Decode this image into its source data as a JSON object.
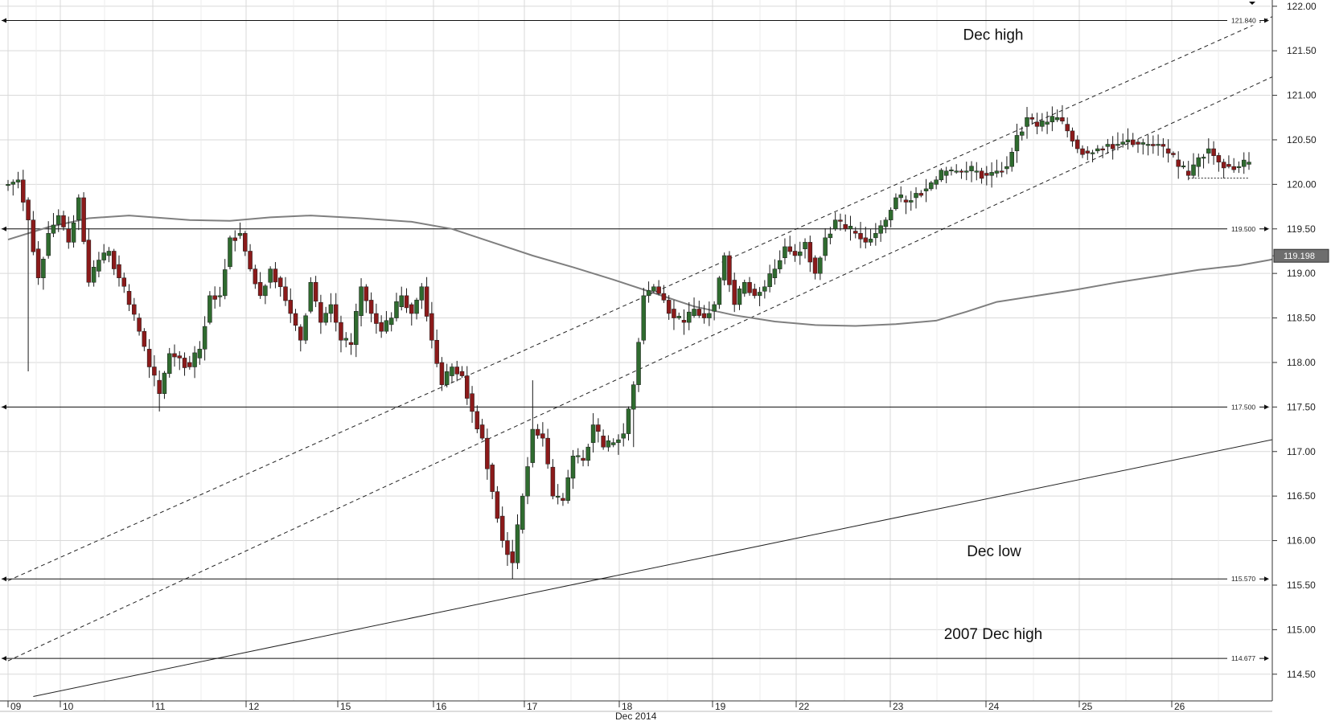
{
  "chart_data": {
    "type": "candlestick",
    "instrument_timeframe": "hourly",
    "y_axis_ticks": [
      "122.00",
      "121.50",
      "121.00",
      "120.50",
      "120.00",
      "119.50",
      "119.00",
      "118.50",
      "118.00",
      "117.50",
      "117.00",
      "116.50",
      "116.00",
      "115.50",
      "115.00",
      "114.50"
    ],
    "y_range": [
      114.2,
      122.07
    ],
    "x_axis_ticks": [
      "09",
      "10",
      "11",
      "12",
      "15",
      "16",
      "17",
      "18",
      "19",
      "22",
      "23",
      "24",
      "25",
      "26"
    ],
    "x_axis_title": "Dec 2014",
    "current_price": "119.198",
    "levels": [
      {
        "label": "121.840",
        "value": 121.84
      },
      {
        "label": "119.500",
        "value": 119.5
      },
      {
        "label": "117.500",
        "value": 117.5
      },
      {
        "label": "115.570",
        "value": 115.57
      },
      {
        "label": "114.677",
        "value": 114.677
      }
    ],
    "annotations": [
      {
        "text": "Dec high",
        "level": 121.84
      },
      {
        "text": "Dec low",
        "level": 115.57
      },
      {
        "text": "2007 Dec high",
        "level": 114.677
      }
    ],
    "channel_upper": [
      {
        "t": 0,
        "y": 115.55
      },
      {
        "t": 129.0,
        "y": 122.07
      }
    ],
    "channel_lower": [
      {
        "t": 0,
        "y": 114.65
      },
      {
        "t": 129.0,
        "y": 121.4
      }
    ],
    "long_trendline": [
      {
        "t": 2.5,
        "y": 114.25
      },
      {
        "t": 129.0,
        "y": 117.22
      }
    ],
    "moving_average": [
      {
        "t": 0,
        "y": 119.38
      },
      {
        "t": 4,
        "y": 119.52
      },
      {
        "t": 8,
        "y": 119.62
      },
      {
        "t": 12,
        "y": 119.65
      },
      {
        "t": 18,
        "y": 119.6
      },
      {
        "t": 22,
        "y": 119.59
      },
      {
        "t": 26,
        "y": 119.63
      },
      {
        "t": 30,
        "y": 119.65
      },
      {
        "t": 35,
        "y": 119.62
      },
      {
        "t": 40,
        "y": 119.58
      },
      {
        "t": 44,
        "y": 119.5
      },
      {
        "t": 48,
        "y": 119.35
      },
      {
        "t": 52,
        "y": 119.2
      },
      {
        "t": 56,
        "y": 119.07
      },
      {
        "t": 60,
        "y": 118.93
      },
      {
        "t": 64,
        "y": 118.78
      },
      {
        "t": 68,
        "y": 118.63
      },
      {
        "t": 72,
        "y": 118.53
      },
      {
        "t": 76,
        "y": 118.46
      },
      {
        "t": 80,
        "y": 118.42
      },
      {
        "t": 84,
        "y": 118.41
      },
      {
        "t": 88,
        "y": 118.43
      },
      {
        "t": 92,
        "y": 118.47
      },
      {
        "t": 95,
        "y": 118.57
      },
      {
        "t": 98,
        "y": 118.68
      },
      {
        "t": 102,
        "y": 118.75
      },
      {
        "t": 106,
        "y": 118.82
      },
      {
        "t": 110,
        "y": 118.9
      },
      {
        "t": 114,
        "y": 118.97
      },
      {
        "t": 118,
        "y": 119.04
      },
      {
        "t": 122,
        "y": 119.09
      },
      {
        "t": 125,
        "y": 119.15
      },
      {
        "t": 127,
        "y": 119.2
      }
    ],
    "gap_line": {
      "t0": 117.0,
      "t1": 123.0,
      "y": 120.07
    },
    "price_path": [
      {
        "t": 0,
        "y": 120.0
      },
      {
        "t": 1,
        "y": 120.05
      },
      {
        "t": 2,
        "y": 119.6
      },
      {
        "t": 3,
        "y": 118.95
      },
      {
        "t": 4,
        "y": 119.45
      },
      {
        "t": 5,
        "y": 119.65
      },
      {
        "t": 6,
        "y": 119.35
      },
      {
        "t": 7,
        "y": 119.85
      },
      {
        "t": 8,
        "y": 118.9
      },
      {
        "t": 9,
        "y": 119.15
      },
      {
        "t": 10,
        "y": 119.25
      },
      {
        "t": 11,
        "y": 118.95
      },
      {
        "t": 12,
        "y": 118.65
      },
      {
        "t": 13,
        "y": 118.35
      },
      {
        "t": 14,
        "y": 117.95
      },
      {
        "t": 15,
        "y": 117.65
      },
      {
        "t": 16,
        "y": 118.1
      },
      {
        "t": 17,
        "y": 118.05
      },
      {
        "t": 18,
        "y": 117.95
      },
      {
        "t": 19,
        "y": 118.15
      },
      {
        "t": 20,
        "y": 118.75
      },
      {
        "t": 21,
        "y": 118.75
      },
      {
        "t": 22,
        "y": 119.4
      },
      {
        "t": 23,
        "y": 119.45
      },
      {
        "t": 24,
        "y": 119.05
      },
      {
        "t": 25,
        "y": 118.75
      },
      {
        "t": 26,
        "y": 119.05
      },
      {
        "t": 27,
        "y": 118.85
      },
      {
        "t": 28,
        "y": 118.55
      },
      {
        "t": 29,
        "y": 118.25
      },
      {
        "t": 30,
        "y": 118.9
      },
      {
        "t": 31,
        "y": 118.45
      },
      {
        "t": 32,
        "y": 118.65
      },
      {
        "t": 33,
        "y": 118.25
      },
      {
        "t": 34,
        "y": 118.2
      },
      {
        "t": 35,
        "y": 118.85
      },
      {
        "t": 36,
        "y": 118.55
      },
      {
        "t": 37,
        "y": 118.35
      },
      {
        "t": 38,
        "y": 118.5
      },
      {
        "t": 39,
        "y": 118.75
      },
      {
        "t": 40,
        "y": 118.55
      },
      {
        "t": 41,
        "y": 118.85
      },
      {
        "t": 42,
        "y": 118.25
      },
      {
        "t": 43,
        "y": 117.75
      },
      {
        "t": 44,
        "y": 117.95
      },
      {
        "t": 45,
        "y": 117.85
      },
      {
        "t": 46,
        "y": 117.45
      },
      {
        "t": 47,
        "y": 117.15
      },
      {
        "t": 48,
        "y": 116.55
      },
      {
        "t": 49,
        "y": 116.0
      },
      {
        "t": 50,
        "y": 115.75
      },
      {
        "t": 51,
        "y": 116.5
      },
      {
        "t": 52,
        "y": 117.25
      },
      {
        "t": 53,
        "y": 117.15
      },
      {
        "t": 54,
        "y": 116.5
      },
      {
        "t": 55,
        "y": 116.45
      },
      {
        "t": 56,
        "y": 116.95
      },
      {
        "t": 57,
        "y": 116.9
      },
      {
        "t": 58,
        "y": 117.3
      },
      {
        "t": 59,
        "y": 117.05
      },
      {
        "t": 60,
        "y": 117.1
      },
      {
        "t": 61,
        "y": 117.2
      },
      {
        "t": 62,
        "y": 117.75
      },
      {
        "t": 63,
        "y": 118.75
      },
      {
        "t": 64,
        "y": 118.85
      },
      {
        "t": 65,
        "y": 118.7
      },
      {
        "t": 66,
        "y": 118.5
      },
      {
        "t": 67,
        "y": 118.45
      },
      {
        "t": 68,
        "y": 118.6
      },
      {
        "t": 69,
        "y": 118.5
      },
      {
        "t": 70,
        "y": 118.65
      },
      {
        "t": 71,
        "y": 119.2
      },
      {
        "t": 72,
        "y": 118.65
      },
      {
        "t": 73,
        "y": 118.9
      },
      {
        "t": 74,
        "y": 118.75
      },
      {
        "t": 75,
        "y": 118.85
      },
      {
        "t": 76,
        "y": 119.05
      },
      {
        "t": 77,
        "y": 119.3
      },
      {
        "t": 78,
        "y": 119.2
      },
      {
        "t": 79,
        "y": 119.35
      },
      {
        "t": 80,
        "y": 119.0
      },
      {
        "t": 81,
        "y": 119.4
      },
      {
        "t": 82,
        "y": 119.6
      },
      {
        "t": 83,
        "y": 119.5
      },
      {
        "t": 84,
        "y": 119.45
      },
      {
        "t": 85,
        "y": 119.35
      },
      {
        "t": 86,
        "y": 119.45
      },
      {
        "t": 87,
        "y": 119.6
      },
      {
        "t": 88,
        "y": 119.85
      },
      {
        "t": 89,
        "y": 119.8
      },
      {
        "t": 90,
        "y": 119.9
      },
      {
        "t": 91,
        "y": 119.95
      },
      {
        "t": 92,
        "y": 120.05
      },
      {
        "t": 93,
        "y": 120.15
      },
      {
        "t": 94,
        "y": 120.15
      },
      {
        "t": 95,
        "y": 120.15
      },
      {
        "t": 96,
        "y": 120.15
      },
      {
        "t": 97,
        "y": 120.1
      },
      {
        "t": 98,
        "y": 120.15
      },
      {
        "t": 99,
        "y": 120.2
      },
      {
        "t": 100,
        "y": 120.55
      },
      {
        "t": 101,
        "y": 120.75
      },
      {
        "t": 102,
        "y": 120.65
      },
      {
        "t": 103,
        "y": 120.7
      },
      {
        "t": 104,
        "y": 120.75
      },
      {
        "t": 105,
        "y": 120.6
      },
      {
        "t": 106,
        "y": 120.4
      },
      {
        "t": 107,
        "y": 120.35
      },
      {
        "t": 108,
        "y": 120.4
      },
      {
        "t": 109,
        "y": 120.45
      },
      {
        "t": 110,
        "y": 120.45
      },
      {
        "t": 111,
        "y": 120.5
      },
      {
        "t": 112,
        "y": 120.45
      },
      {
        "t": 113,
        "y": 120.45
      },
      {
        "t": 114,
        "y": 120.45
      },
      {
        "t": 115,
        "y": 120.35
      },
      {
        "t": 116,
        "y": 120.2
      },
      {
        "t": 117,
        "y": 120.1
      },
      {
        "t": 118,
        "y": 120.3
      },
      {
        "t": 119,
        "y": 120.4
      },
      {
        "t": 120,
        "y": 120.25
      },
      {
        "t": 121,
        "y": 120.2
      },
      {
        "t": 122,
        "y": 120.2
      },
      {
        "t": 123,
        "y": 120.25
      }
    ],
    "wick_spikes": [
      {
        "t": 2,
        "low": 117.9
      },
      {
        "t": 15,
        "low": 117.45
      },
      {
        "t": 50,
        "low": 115.57
      },
      {
        "t": 52,
        "high": 117.8
      },
      {
        "t": 62,
        "low": 117.05
      }
    ],
    "colors": {
      "background": "#ffffff",
      "grid": "#d9d9d9",
      "up_candle": "#2f6b2f",
      "down_candle": "#8b1a1a",
      "moving_average": "#7f7f7f",
      "level_lines": "#111111",
      "price_tag": "#6e6e6e"
    }
  }
}
